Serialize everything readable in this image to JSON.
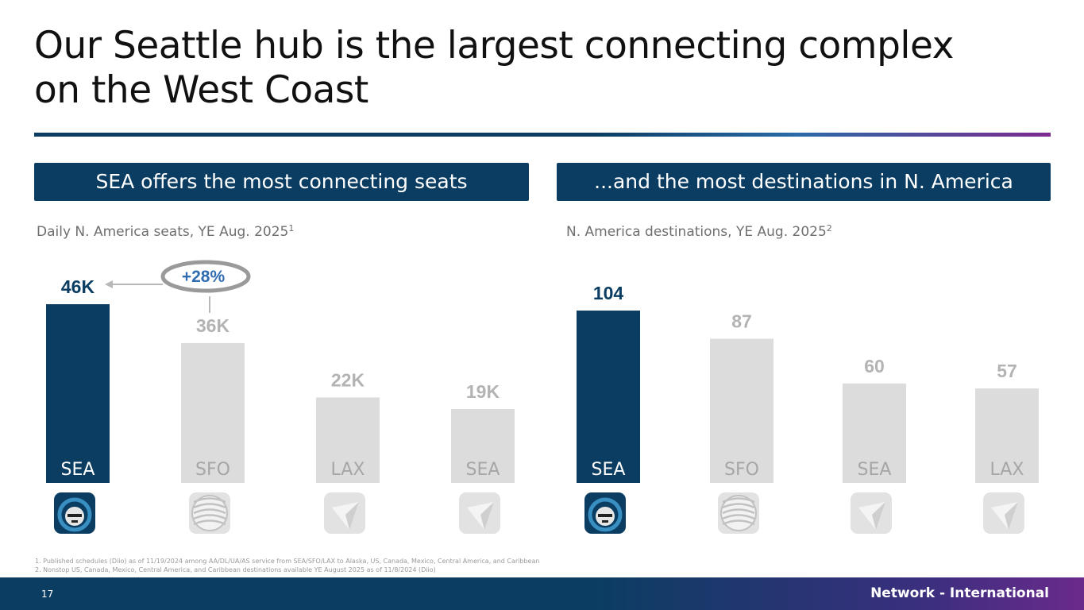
{
  "title": "Our Seattle hub is the largest connecting complex on the West Coast",
  "left_panel": {
    "header": "SEA offers the most connecting seats",
    "subtitle": "Daily N. America seats, YE Aug. 2025",
    "subtitle_ref": "1",
    "callout": "+28%"
  },
  "right_panel": {
    "header": "...and the most destinations in N. America",
    "subtitle": "N. America destinations, YE Aug. 2025",
    "subtitle_ref": "2"
  },
  "chart_data": [
    {
      "type": "bar",
      "categories": [
        "SEA",
        "SFO",
        "LAX",
        "SEA"
      ],
      "values": [
        46,
        36,
        22,
        19
      ],
      "value_labels": [
        "46K",
        "36K",
        "22K",
        "19K"
      ],
      "unit": "K seats",
      "highlight_index": 0,
      "icons": [
        "alaska-logo-icon",
        "united-globe-icon",
        "delta-widget-icon",
        "delta-widget-icon"
      ],
      "colors": {
        "highlight": "#0b3d62",
        "other": "#dcdcdc",
        "highlight_label": "#0b3d62",
        "other_label": "#b3b3b3"
      }
    },
    {
      "type": "bar",
      "categories": [
        "SEA",
        "SFO",
        "SEA",
        "LAX"
      ],
      "values": [
        104,
        87,
        60,
        57
      ],
      "value_labels": [
        "104",
        "87",
        "60",
        "57"
      ],
      "highlight_index": 0,
      "icons": [
        "alaska-logo-icon",
        "united-globe-icon",
        "delta-widget-icon",
        "delta-widget-icon"
      ],
      "colors": {
        "highlight": "#0b3d62",
        "other": "#dcdcdc",
        "highlight_label": "#0b3d62",
        "other_label": "#b3b3b3"
      }
    }
  ],
  "footnotes": [
    "1.  Published schedules (Diio) as of 11/19/2024 among AA/DL/UA/AS service from SEA/SFO/LAX to Alaska, US, Canada, Mexico, Central America, and Caribbean",
    "2.  Nonstop US, Canada, Mexico, Central America, and Caribbean destinations available YE August 2025 as of 11/8/2024 (Diio)"
  ],
  "footer": {
    "page_number": "17",
    "label": "Network - International"
  }
}
